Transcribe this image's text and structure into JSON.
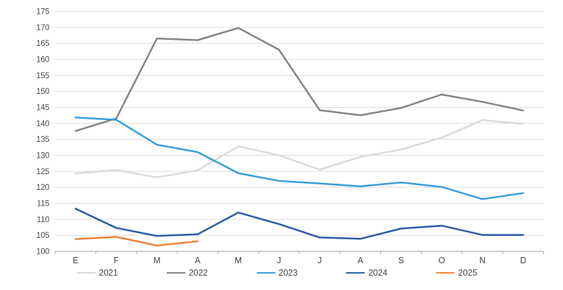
{
  "chart_data": {
    "type": "line",
    "categories": [
      "E",
      "F",
      "M",
      "A",
      "M",
      "J",
      "J",
      "A",
      "S",
      "O",
      "N",
      "D"
    ],
    "series": [
      {
        "name": "2021",
        "color": "#D9D9D9",
        "values": [
          124.3,
          125.4,
          123.1,
          125.3,
          132.8,
          130.0,
          125.5,
          129.5,
          131.8,
          135.5,
          141.0,
          139.8
        ]
      },
      {
        "name": "2022",
        "color": "#7F7F7F",
        "values": [
          137.6,
          141.5,
          166.5,
          166.0,
          169.8,
          163.0,
          144.1,
          142.5,
          144.8,
          149.0,
          146.7,
          144.0
        ]
      },
      {
        "name": "2023",
        "color": "#2E9BDC",
        "values": [
          141.8,
          141.1,
          133.3,
          131.0,
          124.4,
          122.0,
          121.2,
          120.3,
          121.5,
          120.1,
          116.3,
          118.2
        ]
      },
      {
        "name": "2024",
        "color": "#2155A0",
        "values": [
          113.3,
          107.3,
          104.8,
          105.3,
          112.1,
          108.5,
          104.3,
          103.9,
          107.1,
          108.0,
          105.1,
          105.1
        ]
      },
      {
        "name": "2025",
        "color": "#ED7D31",
        "values": [
          103.8,
          104.5,
          101.8,
          103.1
        ]
      }
    ],
    "ylim": [
      100,
      175
    ],
    "ytick_step": 5,
    "grid": true,
    "legend_position": "bottom",
    "axis_color": "#A6A6A6",
    "gridline_color": "#D9D9D9",
    "label_color": "#3D3D3D"
  }
}
